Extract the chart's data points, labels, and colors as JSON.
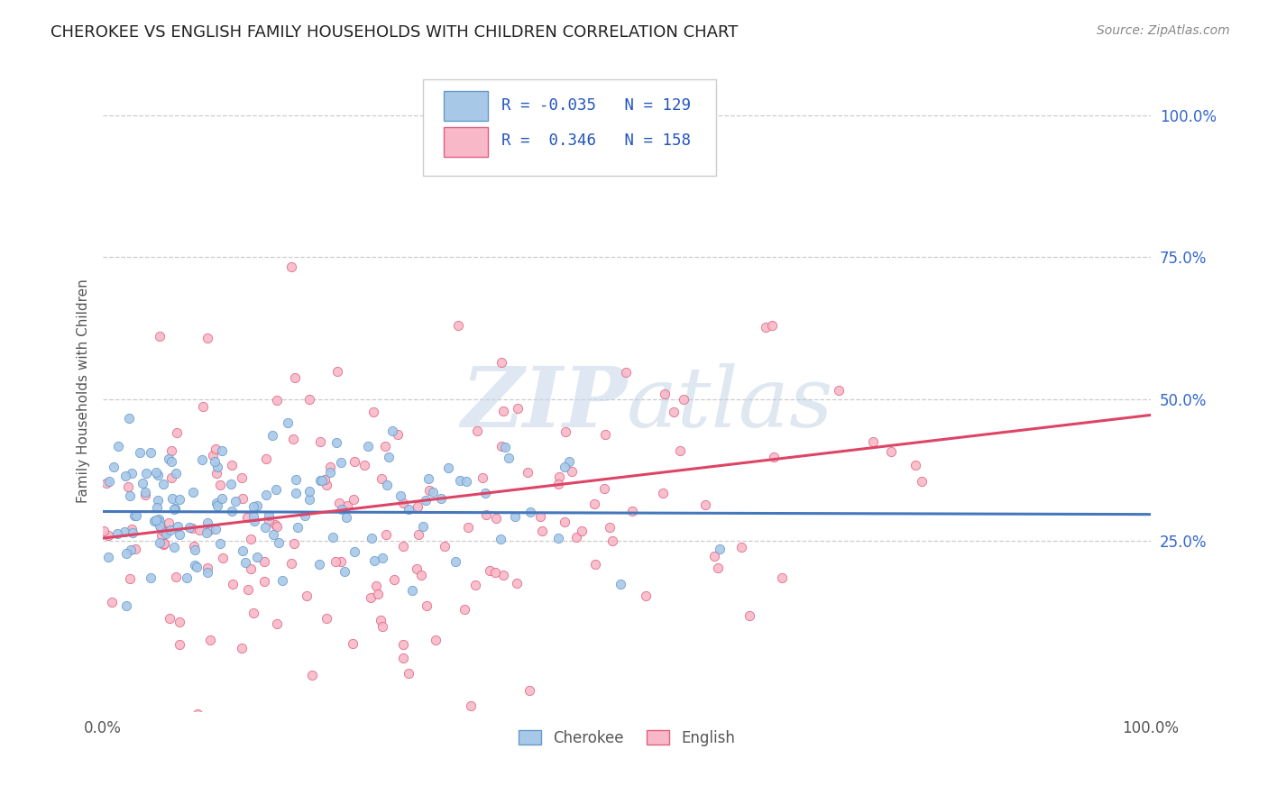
{
  "title": "CHEROKEE VS ENGLISH FAMILY HOUSEHOLDS WITH CHILDREN CORRELATION CHART",
  "source": "Source: ZipAtlas.com",
  "ylabel": "Family Households with Children",
  "xlim": [
    0.0,
    1.0
  ],
  "ylim": [
    -0.05,
    1.08
  ],
  "cherokee_color": "#a8c8e8",
  "cherokee_edge": "#6699cc",
  "english_color": "#f8b8c8",
  "english_edge": "#e06080",
  "cherokee_line_color": "#4477bb",
  "english_line_color": "#dd4466",
  "cherokee_R": -0.035,
  "cherokee_N": 129,
  "english_R": 0.346,
  "english_N": 158,
  "background_color": "#ffffff",
  "grid_color": "#cccccc",
  "watermark_color": "#c8d8ea",
  "title_color": "#222222",
  "title_fontsize": 13,
  "source_fontsize": 10,
  "legend_R_color": "#2255bb",
  "right_axis_color": "#3366cc",
  "yticks": [
    0.25,
    0.5,
    0.75,
    1.0
  ],
  "ytick_labels": [
    "25.0%",
    "50.0%",
    "75.0%",
    "100.0%"
  ],
  "xtick_labels": [
    "0.0%",
    "100.0%"
  ]
}
